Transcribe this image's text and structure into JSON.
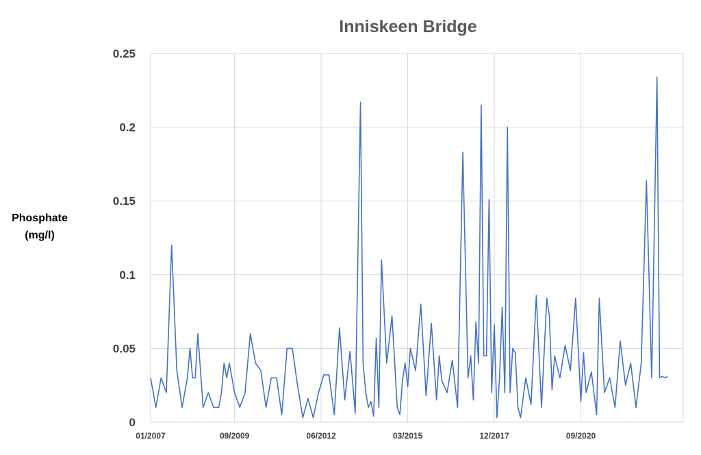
{
  "chart_data": {
    "type": "line",
    "title": "Inniskeen Bridge",
    "ylabel_lines": [
      "Phosphate",
      "(mg/l)"
    ],
    "xlabel": "",
    "ylim": [
      0,
      0.25
    ],
    "yticks": [
      "0",
      "0.05",
      "0.1",
      "0.15",
      "0.2",
      "0.25"
    ],
    "ytick_values": [
      0,
      0.05,
      0.1,
      0.15,
      0.2,
      0.25
    ],
    "xlim": [
      "2007-01",
      "2023-12"
    ],
    "xticks": [
      {
        "label": "01/2007",
        "date": "2007-01"
      },
      {
        "label": "09/2009",
        "date": "2009-09"
      },
      {
        "label": "06/2012",
        "date": "2012-06"
      },
      {
        "label": "03/2015",
        "date": "2015-03"
      },
      {
        "label": "12/2017",
        "date": "2017-12"
      },
      {
        "label": "09/2020",
        "date": "2020-09"
      }
    ],
    "grid": true,
    "line_color": "#4472C4",
    "series": [
      {
        "x": [
          "2007-01",
          "2007-03",
          "2007-05",
          "2007-07",
          "2007-09",
          "2007-11",
          "2008-01",
          "2008-03",
          "2008-04",
          "2008-05",
          "2008-06",
          "2008-07",
          "2008-09",
          "2008-11",
          "2009-01",
          "2009-02",
          "2009-03",
          "2009-04",
          "2009-05",
          "2009-06",
          "2009-07",
          "2009-09",
          "2009-11",
          "2010-01",
          "2010-03",
          "2010-05",
          "2010-07",
          "2010-09",
          "2010-11",
          "2011-01",
          "2011-03",
          "2011-05",
          "2011-07",
          "2011-09",
          "2011-11",
          "2012-01",
          "2012-03",
          "2012-05",
          "2012-07",
          "2012-09",
          "2012-11",
          "2013-01",
          "2013-03",
          "2013-05",
          "2013-07",
          "2013-09",
          "2013-10",
          "2013-11",
          "2013-12",
          "2014-01",
          "2014-02",
          "2014-03",
          "2014-04",
          "2014-05",
          "2014-07",
          "2014-09",
          "2014-11",
          "2014-12",
          "2015-01",
          "2015-02",
          "2015-03",
          "2015-04",
          "2015-06",
          "2015-08",
          "2015-10",
          "2015-12",
          "2016-02",
          "2016-03",
          "2016-04",
          "2016-06",
          "2016-08",
          "2016-10",
          "2016-12",
          "2017-02",
          "2017-03",
          "2017-04",
          "2017-05",
          "2017-06",
          "2017-07",
          "2017-08",
          "2017-09",
          "2017-10",
          "2017-11",
          "2017-12",
          "2018-01",
          "2018-02",
          "2018-03",
          "2018-04",
          "2018-05",
          "2018-06",
          "2018-07",
          "2018-08",
          "2018-09",
          "2018-10",
          "2018-12",
          "2019-02",
          "2019-04",
          "2019-06",
          "2019-08",
          "2019-09",
          "2019-10",
          "2019-11",
          "2020-01",
          "2020-03",
          "2020-05",
          "2020-07",
          "2020-09",
          "2020-10",
          "2020-11",
          "2021-01",
          "2021-03",
          "2021-04",
          "2021-06",
          "2021-08",
          "2021-10",
          "2021-12",
          "2022-02",
          "2022-04",
          "2022-06",
          "2022-08",
          "2022-10",
          "2022-12",
          "2023-02",
          "2023-03",
          "2023-04",
          "2023-05",
          "2023-06"
        ],
        "y": [
          0.03,
          0.01,
          0.03,
          0.02,
          0.12,
          0.035,
          0.01,
          0.03,
          0.05,
          0.03,
          0.03,
          0.06,
          0.01,
          0.02,
          0.01,
          0.01,
          0.01,
          0.02,
          0.04,
          0.03,
          0.04,
          0.02,
          0.01,
          0.02,
          0.06,
          0.04,
          0.035,
          0.01,
          0.03,
          0.03,
          0.005,
          0.05,
          0.05,
          0.025,
          0.003,
          0.016,
          0.003,
          0.02,
          0.032,
          0.032,
          0.005,
          0.064,
          0.015,
          0.048,
          0.006,
          0.217,
          0.04,
          0.02,
          0.01,
          0.014,
          0.004,
          0.057,
          0.01,
          0.11,
          0.04,
          0.072,
          0.01,
          0.005,
          0.028,
          0.04,
          0.024,
          0.05,
          0.035,
          0.08,
          0.018,
          0.067,
          0.015,
          0.045,
          0.028,
          0.02,
          0.042,
          0.01,
          0.183,
          0.03,
          0.045,
          0.015,
          0.068,
          0.04,
          0.215,
          0.045,
          0.045,
          0.151,
          0.02,
          0.066,
          0.003,
          0.03,
          0.078,
          0.02,
          0.2,
          0.02,
          0.05,
          0.047,
          0.01,
          0.003,
          0.03,
          0.012,
          0.086,
          0.01,
          0.084,
          0.072,
          0.022,
          0.045,
          0.03,
          0.052,
          0.035,
          0.084,
          0.014,
          0.047,
          0.02,
          0.034,
          0.005,
          0.084,
          0.02,
          0.03,
          0.01,
          0.055,
          0.025,
          0.04,
          0.01,
          0.04,
          0.164,
          0.03,
          0.234,
          0.03,
          0.031,
          0.03,
          0.031
        ]
      }
    ]
  }
}
